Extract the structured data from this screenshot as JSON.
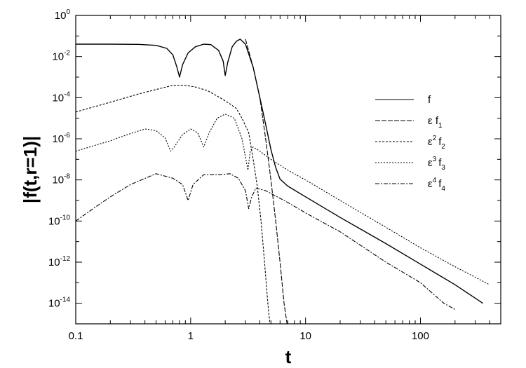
{
  "chart_data": {
    "type": "line",
    "xlabel": "t",
    "ylabel": "|f(t,r=1)|",
    "x_scale": "log",
    "y_scale": "log",
    "xlim": [
      0.1,
      500
    ],
    "ylim": [
      1e-15,
      1
    ],
    "x_ticks": [
      {
        "value": 0.1,
        "label": "0.1"
      },
      {
        "value": 1,
        "label": "1"
      },
      {
        "value": 10,
        "label": "10"
      },
      {
        "value": 100,
        "label": "100"
      }
    ],
    "y_ticks": [
      {
        "value": 1,
        "base": "10",
        "exp": "0"
      },
      {
        "value": 0.01,
        "base": "10",
        "exp": "-2"
      },
      {
        "value": 0.0001,
        "base": "10",
        "exp": "-4"
      },
      {
        "value": 1e-06,
        "base": "10",
        "exp": "-6"
      },
      {
        "value": 1e-08,
        "base": "10",
        "exp": "-8"
      },
      {
        "value": 1e-10,
        "base": "10",
        "exp": "-10"
      },
      {
        "value": 1e-12,
        "base": "10",
        "exp": "-12"
      },
      {
        "value": 1e-14,
        "base": "10",
        "exp": "-14"
      }
    ],
    "legend": {
      "position": "right",
      "entries": [
        {
          "prefix": "f",
          "sup": "",
          "sub": "",
          "dash": "none"
        },
        {
          "prefix": "ε f",
          "sup": "",
          "sub": "1",
          "dash": "7,2"
        },
        {
          "prefix": "ε",
          "sup": "2",
          "sub": "2",
          "dash": "3,2"
        },
        {
          "prefix": "ε",
          "sup": "3",
          "sub": "3",
          "dash": "2,2"
        },
        {
          "prefix": "ε",
          "sup": "4",
          "sub": "4",
          "dash": "6,2,2,2"
        }
      ]
    },
    "series": [
      {
        "label": "f",
        "dash": "none",
        "points": [
          [
            0.1,
            0.04
          ],
          [
            0.2,
            0.04
          ],
          [
            0.35,
            0.039
          ],
          [
            0.5,
            0.035
          ],
          [
            0.62,
            0.025
          ],
          [
            0.7,
            0.012
          ],
          [
            0.76,
            0.003
          ],
          [
            0.8,
            0.001
          ],
          [
            0.85,
            0.004
          ],
          [
            0.95,
            0.015
          ],
          [
            1.1,
            0.03
          ],
          [
            1.3,
            0.04
          ],
          [
            1.5,
            0.038
          ],
          [
            1.75,
            0.02
          ],
          [
            1.92,
            0.006
          ],
          [
            2.0,
            0.0012
          ],
          [
            2.1,
            0.005
          ],
          [
            2.3,
            0.03
          ],
          [
            2.5,
            0.055
          ],
          [
            2.7,
            0.07
          ],
          [
            3.0,
            0.04
          ],
          [
            3.5,
            0.003
          ],
          [
            4.0,
            0.0001
          ],
          [
            4.5,
            5e-06
          ],
          [
            5.0,
            3e-07
          ],
          [
            5.5,
            4e-08
          ],
          [
            6.0,
            1.1e-08
          ],
          [
            7.0,
            5e-09
          ],
          [
            10,
            1.5e-09
          ],
          [
            20,
            1.5e-10
          ],
          [
            50,
            8e-12
          ],
          [
            100,
            8e-13
          ],
          [
            200,
            8e-14
          ],
          [
            350,
            1e-14
          ]
        ]
      },
      {
        "label": "ε f1",
        "dash": "7,2",
        "points": [
          [
            3.0,
            0.07
          ],
          [
            3.5,
            0.003
          ],
          [
            4.0,
            0.0001
          ],
          [
            4.5,
            1e-06
          ],
          [
            5.0,
            1e-08
          ],
          [
            5.5,
            1e-10
          ],
          [
            6.0,
            1e-12
          ],
          [
            6.5,
            1e-14
          ],
          [
            6.9,
            1e-15
          ]
        ]
      },
      {
        "label": "ε² f2",
        "dash": "3,2",
        "points": [
          [
            0.1,
            2e-05
          ],
          [
            0.2,
            6e-05
          ],
          [
            0.35,
            0.00015
          ],
          [
            0.5,
            0.00025
          ],
          [
            0.7,
            0.0004
          ],
          [
            0.9,
            0.0004
          ],
          [
            1.1,
            0.00033
          ],
          [
            1.4,
            0.00022
          ],
          [
            1.8,
            0.0001
          ],
          [
            2.2,
            5e-05
          ],
          [
            2.5,
            3e-05
          ],
          [
            2.8,
            1e-05
          ],
          [
            3.2,
            2e-06
          ],
          [
            3.5,
            1e-07
          ],
          [
            3.8,
            5e-09
          ],
          [
            4.1,
            1e-10
          ],
          [
            4.4,
            1e-12
          ],
          [
            4.7,
            1e-14
          ],
          [
            4.9,
            1e-15
          ]
        ]
      },
      {
        "label": "ε³ f3",
        "dash": "2,2",
        "points": [
          [
            0.1,
            2.5e-07
          ],
          [
            0.2,
            8e-07
          ],
          [
            0.3,
            1.8e-06
          ],
          [
            0.4,
            3e-06
          ],
          [
            0.5,
            2.5e-06
          ],
          [
            0.6,
            1.1e-06
          ],
          [
            0.67,
            2.5e-07
          ],
          [
            0.72,
            4e-07
          ],
          [
            0.85,
            1.6e-06
          ],
          [
            1.0,
            3e-06
          ],
          [
            1.15,
            2e-06
          ],
          [
            1.3,
            4e-07
          ],
          [
            1.45,
            2e-06
          ],
          [
            1.7,
            1e-05
          ],
          [
            2.0,
            1.6e-05
          ],
          [
            2.4,
            1e-05
          ],
          [
            2.8,
            1e-06
          ],
          [
            3.15,
            3e-08
          ],
          [
            3.3,
            2.5e-07
          ],
          [
            3.5,
            4e-07
          ],
          [
            4.0,
            2.5e-07
          ],
          [
            5.0,
            1e-07
          ],
          [
            7.0,
            3e-08
          ],
          [
            10,
            1e-08
          ],
          [
            20,
            1e-09
          ],
          [
            50,
            5e-11
          ],
          [
            100,
            5e-12
          ],
          [
            200,
            6e-13
          ],
          [
            400,
            8e-14
          ]
        ]
      },
      {
        "label": "ε⁴ f4",
        "dash": "6,2,2,2",
        "points": [
          [
            0.1,
            1e-10
          ],
          [
            0.15,
            5e-10
          ],
          [
            0.2,
            1.5e-09
          ],
          [
            0.3,
            6e-09
          ],
          [
            0.5,
            2e-08
          ],
          [
            0.7,
            1.2e-08
          ],
          [
            0.85,
            6e-09
          ],
          [
            0.95,
            1e-09
          ],
          [
            1.05,
            6e-09
          ],
          [
            1.3,
            1.8e-08
          ],
          [
            1.8,
            1.8e-08
          ],
          [
            2.2,
            2e-08
          ],
          [
            2.6,
            1.2e-08
          ],
          [
            3.0,
            3e-09
          ],
          [
            3.2,
            4e-10
          ],
          [
            3.4,
            1.5e-09
          ],
          [
            3.7,
            4e-09
          ],
          [
            4.5,
            3e-09
          ],
          [
            7.0,
            8e-10
          ],
          [
            10,
            2.5e-10
          ],
          [
            20,
            3e-11
          ],
          [
            50,
            1e-12
          ],
          [
            100,
            1e-13
          ],
          [
            160,
            1e-14
          ],
          [
            200,
            5e-15
          ]
        ]
      }
    ]
  }
}
